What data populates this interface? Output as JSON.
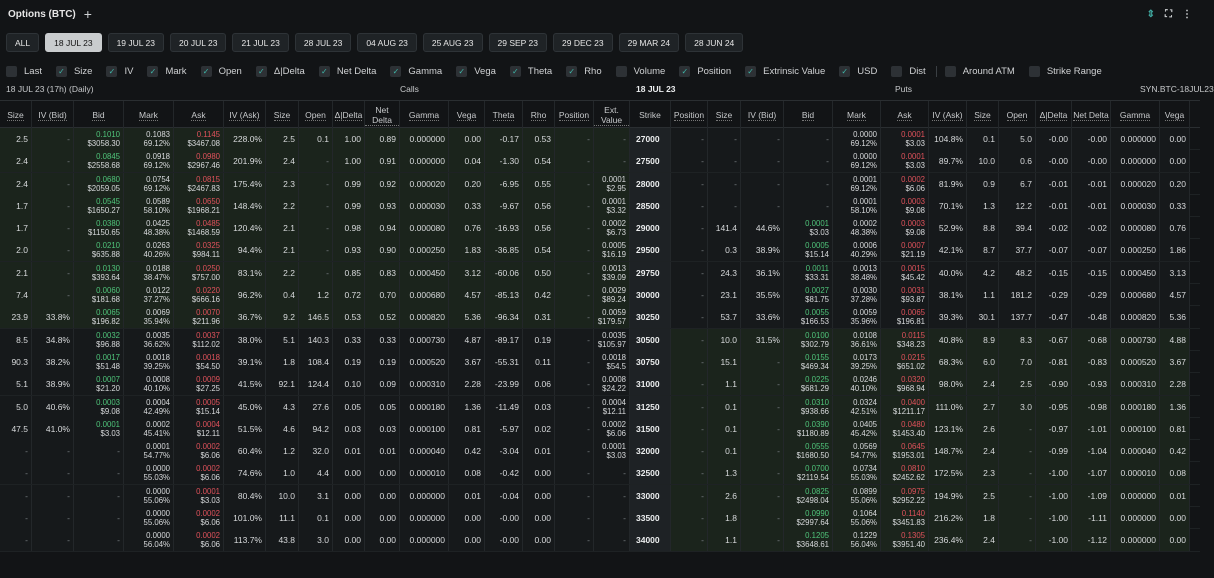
{
  "window": {
    "title": "Options (BTC)"
  },
  "expiries": [
    "ALL",
    "18 JUL 23",
    "19 JUL 23",
    "20 JUL 23",
    "21 JUL 23",
    "28 JUL 23",
    "04 AUG 23",
    "25 AUG 23",
    "29 SEP 23",
    "29 DEC 23",
    "29 MAR 24",
    "28 JUN 24"
  ],
  "active_expiry": 1,
  "options": [
    {
      "label": "Last",
      "checked": false
    },
    {
      "label": "Size",
      "checked": true
    },
    {
      "label": "IV",
      "checked": true
    },
    {
      "label": "Mark",
      "checked": true
    },
    {
      "label": "Open",
      "checked": true
    },
    {
      "label": "Δ|Delta",
      "checked": true
    },
    {
      "label": "Net Delta",
      "checked": true
    },
    {
      "label": "Gamma",
      "checked": true
    },
    {
      "label": "Vega",
      "checked": true
    },
    {
      "label": "Theta",
      "checked": true
    },
    {
      "label": "Rho",
      "checked": true
    },
    {
      "label": "Volume",
      "checked": false
    },
    {
      "label": "Position",
      "checked": true
    },
    {
      "label": "Extrinsic Value",
      "checked": true
    },
    {
      "label": "USD",
      "checked": true
    },
    {
      "label": "Dist",
      "checked": false
    },
    {
      "label": "Around ATM",
      "checked": false
    },
    {
      "label": "Strike Range",
      "checked": false
    }
  ],
  "section": {
    "expiry_label": "18 JUL 23 (17h) (Daily)",
    "calls": "Calls",
    "center": "18 JUL 23",
    "puts": "Puts",
    "synthetic": "SYN.BTC-18JUL23"
  },
  "call_headers": [
    "Size",
    "IV (Bid)",
    "Bid",
    "Mark",
    "Ask",
    "IV (Ask)",
    "Size",
    "Open",
    "Δ|Delta",
    "Net Delta",
    "Gamma",
    "Vega",
    "Theta",
    "Rho",
    "Position",
    "Ext. Value"
  ],
  "strike_header": "Strike",
  "put_headers": [
    "Position",
    "Size",
    "IV (Bid)",
    "Bid",
    "Mark",
    "Ask",
    "IV (Ask)",
    "Size",
    "Open",
    "Δ|Delta",
    "Net Delta",
    "Gamma",
    "Vega"
  ],
  "rows": [
    {
      "strike": "27000",
      "itm": "call",
      "c": [
        "2.5",
        "-",
        "0.1010|$3058.30",
        "0.1083|69.12%",
        "0.1145|$3467.08",
        "228.0%",
        "2.5",
        "0.1",
        "1.00",
        "0.89",
        "0.000000",
        "0.00",
        "-0.17",
        "0.53",
        "-",
        "-"
      ],
      "p": [
        "-",
        "-",
        "-",
        "-",
        "0.0000|69.12%",
        "0.0001|$3.03",
        "104.8%",
        "0.1",
        "5.0",
        "-0.00",
        "-0.00",
        "0.000000",
        "0.00"
      ]
    },
    {
      "strike": "27500",
      "itm": "call",
      "c": [
        "2.4",
        "-",
        "0.0845|$2558.68",
        "0.0918|69.12%",
        "0.0980|$2967.46",
        "201.9%",
        "2.4",
        "-",
        "1.00",
        "0.91",
        "0.000000",
        "0.04",
        "-1.30",
        "0.54",
        "-",
        "-"
      ],
      "p": [
        "-",
        "-",
        "-",
        "-",
        "0.0000|69.12%",
        "0.0001|$3.03",
        "89.7%",
        "10.0",
        "0.6",
        "-0.00",
        "-0.00",
        "0.000000",
        "0.00"
      ]
    },
    {
      "strike": "28000",
      "itm": "call",
      "c": [
        "2.4",
        "-",
        "0.0680|$2059.05",
        "0.0754|69.12%",
        "0.0815|$2467.83",
        "175.4%",
        "2.3",
        "-",
        "0.99",
        "0.92",
        "0.000020",
        "0.20",
        "-6.95",
        "0.55",
        "-",
        "0.0001|$2.95"
      ],
      "p": [
        "-",
        "-",
        "-",
        "-",
        "0.0001|69.12%",
        "0.0002|$6.06",
        "81.9%",
        "0.9",
        "6.7",
        "-0.01",
        "-0.01",
        "0.000020",
        "0.20"
      ]
    },
    {
      "strike": "28500",
      "itm": "call",
      "c": [
        "1.7",
        "-",
        "0.0545|$1650.27",
        "0.0589|58.10%",
        "0.0650|$1968.21",
        "148.4%",
        "2.2",
        "-",
        "0.99",
        "0.93",
        "0.000030",
        "0.33",
        "-9.67",
        "0.56",
        "-",
        "0.0001|$3.32"
      ],
      "p": [
        "-",
        "-",
        "-",
        "-",
        "0.0001|58.10%",
        "0.0003|$9.08",
        "70.1%",
        "1.3",
        "12.2",
        "-0.01",
        "-0.01",
        "0.000030",
        "0.33"
      ]
    },
    {
      "strike": "29000",
      "itm": "call",
      "c": [
        "1.7",
        "-",
        "0.0380|$1150.65",
        "0.0425|48.38%",
        "0.0485|$1468.59",
        "120.4%",
        "2.1",
        "-",
        "0.98",
        "0.94",
        "0.000080",
        "0.76",
        "-16.93",
        "0.56",
        "-",
        "0.0002|$6.73"
      ],
      "p": [
        "-",
        "141.4",
        "44.6%",
        "0.0001|$3.03",
        "0.0002|48.38%",
        "0.0003|$9.08",
        "52.9%",
        "8.8",
        "39.4",
        "-0.02",
        "-0.02",
        "0.000080",
        "0.76"
      ]
    },
    {
      "strike": "29500",
      "itm": "call",
      "c": [
        "2.0",
        "-",
        "0.0210|$635.88",
        "0.0263|40.26%",
        "0.0325|$984.11",
        "94.4%",
        "2.1",
        "-",
        "0.93",
        "0.90",
        "0.000250",
        "1.83",
        "-36.85",
        "0.54",
        "-",
        "0.0005|$16.19"
      ],
      "p": [
        "-",
        "0.3",
        "38.9%",
        "0.0005|$15.14",
        "0.0006|40.29%",
        "0.0007|$21.19",
        "42.1%",
        "8.7",
        "37.7",
        "-0.07",
        "-0.07",
        "0.000250",
        "1.86"
      ]
    },
    {
      "strike": "29750",
      "itm": "call",
      "c": [
        "2.1",
        "-",
        "0.0130|$393.64",
        "0.0188|38.47%",
        "0.0250|$757.00",
        "83.1%",
        "2.2",
        "-",
        "0.85",
        "0.83",
        "0.000450",
        "3.12",
        "-60.06",
        "0.50",
        "-",
        "0.0013|$39.09"
      ],
      "p": [
        "-",
        "24.3",
        "36.1%",
        "0.0011|$33.31",
        "0.0013|38.48%",
        "0.0015|$45.42",
        "40.0%",
        "4.2",
        "48.2",
        "-0.15",
        "-0.15",
        "0.000450",
        "3.13"
      ]
    },
    {
      "strike": "30000",
      "itm": "call",
      "c": [
        "7.4",
        "-",
        "0.0060|$181.68",
        "0.0122|37.27%",
        "0.0220|$666.16",
        "96.2%",
        "0.4",
        "1.2",
        "0.72",
        "0.70",
        "0.000680",
        "4.57",
        "-85.13",
        "0.42",
        "-",
        "0.0029|$89.24"
      ],
      "p": [
        "-",
        "23.1",
        "35.5%",
        "0.0027|$81.75",
        "0.0030|37.28%",
        "0.0031|$93.87",
        "38.1%",
        "1.1",
        "181.2",
        "-0.29",
        "-0.29",
        "0.000680",
        "4.57"
      ]
    },
    {
      "strike": "30250",
      "itm": "call",
      "c": [
        "23.9",
        "33.8%",
        "0.0065|$196.82",
        "0.0069|35.94%",
        "0.0070|$211.96",
        "36.7%",
        "9.2",
        "146.5",
        "0.53",
        "0.52",
        "0.000820",
        "5.36",
        "-96.34",
        "0.31",
        "-",
        "0.0059|$179.57"
      ],
      "p": [
        "-",
        "53.7",
        "33.6%",
        "0.0055|$166.53",
        "0.0059|35.96%",
        "0.0065|$196.81",
        "39.3%",
        "30.1",
        "137.7",
        "-0.47",
        "-0.48",
        "0.000820",
        "5.36"
      ]
    },
    {
      "strike": "30500",
      "itm": "put",
      "c": [
        "8.5",
        "34.8%",
        "0.0032|$96.88",
        "0.0035|36.62%",
        "0.0037|$112.02",
        "38.0%",
        "5.1",
        "140.3",
        "0.33",
        "0.33",
        "0.000730",
        "4.87",
        "-89.17",
        "0.19",
        "-",
        "0.0035|$105.97"
      ],
      "p": [
        "-",
        "10.0",
        "31.5%",
        "0.0100|$302.79",
        "0.0108|36.61%",
        "0.0115|$348.23",
        "40.8%",
        "8.9",
        "8.3",
        "-0.67",
        "-0.68",
        "0.000730",
        "4.88"
      ]
    },
    {
      "strike": "30750",
      "itm": "put",
      "c": [
        "90.3",
        "38.2%",
        "0.0017|$51.48",
        "0.0018|39.25%",
        "0.0018|$54.50",
        "39.1%",
        "1.8",
        "108.4",
        "0.19",
        "0.19",
        "0.000520",
        "3.67",
        "-55.31",
        "0.11",
        "-",
        "0.0018|$54.5"
      ],
      "p": [
        "-",
        "15.1",
        "-",
        "0.0155|$469.34",
        "0.0173|39.25%",
        "0.0215|$651.02",
        "68.3%",
        "6.0",
        "7.0",
        "-0.81",
        "-0.83",
        "0.000520",
        "3.67"
      ]
    },
    {
      "strike": "31000",
      "itm": "put",
      "c": [
        "5.1",
        "38.9%",
        "0.0007|$21.20",
        "0.0008|40.10%",
        "0.0009|$27.25",
        "41.5%",
        "92.1",
        "124.4",
        "0.10",
        "0.09",
        "0.000310",
        "2.28",
        "-23.99",
        "0.06",
        "-",
        "0.0008|$24.22"
      ],
      "p": [
        "-",
        "1.1",
        "-",
        "0.0225|$681.29",
        "0.0246|40.10%",
        "0.0320|$968.94",
        "98.0%",
        "2.4",
        "2.5",
        "-0.90",
        "-0.93",
        "0.000310",
        "2.28"
      ]
    },
    {
      "strike": "31250",
      "itm": "put",
      "c": [
        "5.0",
        "40.6%",
        "0.0003|$9.08",
        "0.0004|42.49%",
        "0.0005|$15.14",
        "45.0%",
        "4.3",
        "27.6",
        "0.05",
        "0.05",
        "0.000180",
        "1.36",
        "-11.49",
        "0.03",
        "-",
        "0.0004|$12.11"
      ],
      "p": [
        "-",
        "0.1",
        "-",
        "0.0310|$938.66",
        "0.0324|42.51%",
        "0.0400|$1211.17",
        "111.0%",
        "2.7",
        "3.0",
        "-0.95",
        "-0.98",
        "0.000180",
        "1.36"
      ]
    },
    {
      "strike": "31500",
      "itm": "put",
      "c": [
        "47.5",
        "41.0%",
        "0.0001|$3.03",
        "0.0002|45.41%",
        "0.0004|$12.11",
        "51.5%",
        "4.6",
        "94.2",
        "0.03",
        "0.03",
        "0.000100",
        "0.81",
        "-5.97",
        "0.02",
        "-",
        "0.0002|$6.06"
      ],
      "p": [
        "-",
        "0.1",
        "-",
        "0.0390|$1180.89",
        "0.0405|45.42%",
        "0.0480|$1453.40",
        "123.1%",
        "2.6",
        "-",
        "-0.97",
        "-1.01",
        "0.000100",
        "0.81"
      ]
    },
    {
      "strike": "32000",
      "itm": "put",
      "c": [
        "-",
        "-",
        "-",
        "0.0001|54.77%",
        "0.0002|$6.06",
        "60.4%",
        "1.2",
        "32.0",
        "0.01",
        "0.01",
        "0.000040",
        "0.42",
        "-3.04",
        "0.01",
        "-",
        "0.0001|$3.03"
      ],
      "p": [
        "-",
        "0.1",
        "-",
        "0.0555|$1680.50",
        "0.0569|54.77%",
        "0.0645|$1953.01",
        "148.7%",
        "2.4",
        "-",
        "-0.99",
        "-1.04",
        "0.000040",
        "0.42"
      ]
    },
    {
      "strike": "32500",
      "itm": "put",
      "c": [
        "-",
        "-",
        "-",
        "0.0000|55.03%",
        "0.0002|$6.06",
        "74.6%",
        "1.0",
        "4.4",
        "0.00",
        "0.00",
        "0.000010",
        "0.08",
        "-0.42",
        "0.00",
        "-",
        "-"
      ],
      "p": [
        "-",
        "1.3",
        "-",
        "0.0700|$2119.54",
        "0.0734|55.03%",
        "0.0810|$2452.62",
        "172.5%",
        "2.3",
        "-",
        "-1.00",
        "-1.07",
        "0.000010",
        "0.08"
      ]
    },
    {
      "strike": "33000",
      "itm": "put",
      "c": [
        "-",
        "-",
        "-",
        "0.0000|55.06%",
        "0.0001|$3.03",
        "80.4%",
        "10.0",
        "3.1",
        "0.00",
        "0.00",
        "0.000000",
        "0.01",
        "-0.04",
        "0.00",
        "-",
        "-"
      ],
      "p": [
        "-",
        "2.6",
        "-",
        "0.0825|$2498.04",
        "0.0899|55.06%",
        "0.0975|$2952.22",
        "194.9%",
        "2.5",
        "-",
        "-1.00",
        "-1.09",
        "0.000000",
        "0.01"
      ]
    },
    {
      "strike": "33500",
      "itm": "put",
      "c": [
        "-",
        "-",
        "-",
        "0.0000|55.06%",
        "0.0002|$6.06",
        "101.0%",
        "11.1",
        "0.1",
        "0.00",
        "0.00",
        "0.000000",
        "0.00",
        "-0.00",
        "0.00",
        "-",
        "-"
      ],
      "p": [
        "-",
        "1.8",
        "-",
        "0.0990|$2997.64",
        "0.1064|55.06%",
        "0.1140|$3451.83",
        "216.2%",
        "1.8",
        "-",
        "-1.00",
        "-1.11",
        "0.000000",
        "0.00"
      ]
    },
    {
      "strike": "34000",
      "itm": "put",
      "c": [
        "-",
        "-",
        "-",
        "0.0000|56.04%",
        "0.0002|$6.06",
        "113.7%",
        "43.8",
        "3.0",
        "0.00",
        "0.00",
        "0.000000",
        "0.00",
        "-0.00",
        "0.00",
        "-",
        "-"
      ],
      "p": [
        "-",
        "1.1",
        "-",
        "0.1205|$3648.61",
        "0.1229|56.04%",
        "0.1305|$3951.40",
        "236.4%",
        "2.4",
        "-",
        "-1.00",
        "-1.12",
        "0.000000",
        "0.00"
      ]
    }
  ]
}
